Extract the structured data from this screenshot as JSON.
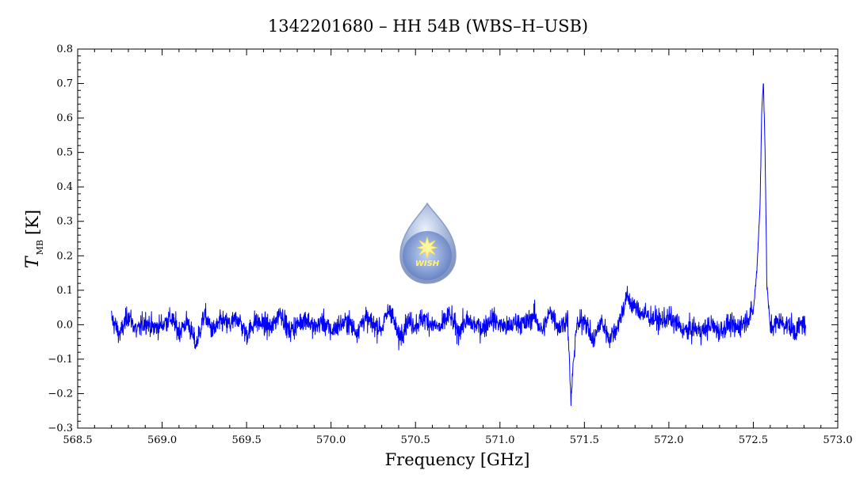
{
  "chart_data": {
    "type": "line",
    "title": "1342201680 – HH 54B (WBS–H–USB)",
    "xlabel": "Frequency [GHz]",
    "ylabel": {
      "symbol": "T",
      "subscript": "MB",
      "unit": "[K]"
    },
    "xlim": [
      568.5,
      573.0
    ],
    "ylim": [
      -0.3,
      0.8
    ],
    "x_ticks": [
      "568.5",
      "569.0",
      "569.5",
      "570.0",
      "570.5",
      "571.0",
      "571.5",
      "572.0",
      "572.5",
      "573.0"
    ],
    "y_ticks": [
      "−0.3",
      "−0.2",
      "−0.1",
      "0.0",
      "0.1",
      "0.2",
      "0.3",
      "0.4",
      "0.5",
      "0.6",
      "0.7",
      "0.8"
    ],
    "grid": false,
    "series": [
      {
        "color": "#0000ff",
        "x": [
          568.7,
          568.75,
          568.8,
          568.85,
          568.9,
          568.95,
          569.0,
          569.05,
          569.1,
          569.15,
          569.2,
          569.25,
          569.3,
          569.35,
          569.4,
          569.45,
          569.5,
          569.55,
          569.6,
          569.65,
          569.7,
          569.75,
          569.8,
          569.85,
          569.9,
          569.95,
          570.0,
          570.05,
          570.1,
          570.15,
          570.2,
          570.25,
          570.3,
          570.35,
          570.4,
          570.45,
          570.5,
          570.55,
          570.6,
          570.65,
          570.7,
          570.75,
          570.8,
          570.85,
          570.9,
          570.95,
          571.0,
          571.05,
          571.1,
          571.15,
          571.2,
          571.25,
          571.3,
          571.35,
          571.4,
          571.42,
          571.45,
          571.5,
          571.55,
          571.6,
          571.65,
          571.7,
          571.75,
          571.8,
          571.85,
          571.9,
          571.95,
          572.0,
          572.05,
          572.1,
          572.15,
          572.2,
          572.25,
          572.3,
          572.35,
          572.4,
          572.45,
          572.5,
          572.52,
          572.54,
          572.55,
          572.56,
          572.57,
          572.58,
          572.6,
          572.65,
          572.7,
          572.75,
          572.8,
          572.81
        ],
        "y": [
          0.02,
          -0.03,
          0.03,
          -0.02,
          0.01,
          -0.01,
          0.0,
          0.02,
          -0.02,
          0.01,
          -0.06,
          0.03,
          -0.02,
          0.01,
          0.0,
          0.02,
          -0.03,
          0.01,
          0.0,
          -0.01,
          0.04,
          -0.02,
          0.0,
          0.02,
          -0.01,
          0.01,
          -0.02,
          0.0,
          0.01,
          -0.02,
          0.02,
          0.0,
          -0.01,
          0.05,
          -0.04,
          0.01,
          0.0,
          0.02,
          0.0,
          -0.01,
          0.03,
          -0.02,
          0.01,
          0.0,
          -0.01,
          0.02,
          0.0,
          -0.01,
          0.01,
          0.0,
          0.03,
          -0.02,
          0.04,
          -0.01,
          0.02,
          -0.22,
          -0.01,
          0.02,
          -0.05,
          0.01,
          -0.04,
          0.0,
          0.08,
          0.05,
          0.03,
          0.02,
          0.01,
          0.02,
          0.0,
          -0.02,
          -0.01,
          -0.02,
          0.0,
          -0.02,
          0.0,
          -0.01,
          0.01,
          0.04,
          0.15,
          0.35,
          0.62,
          0.71,
          0.5,
          0.12,
          -0.01,
          0.01,
          0.0,
          -0.02,
          0.01,
          -0.03
        ]
      }
    ]
  },
  "logo": {
    "text": "WISH"
  }
}
